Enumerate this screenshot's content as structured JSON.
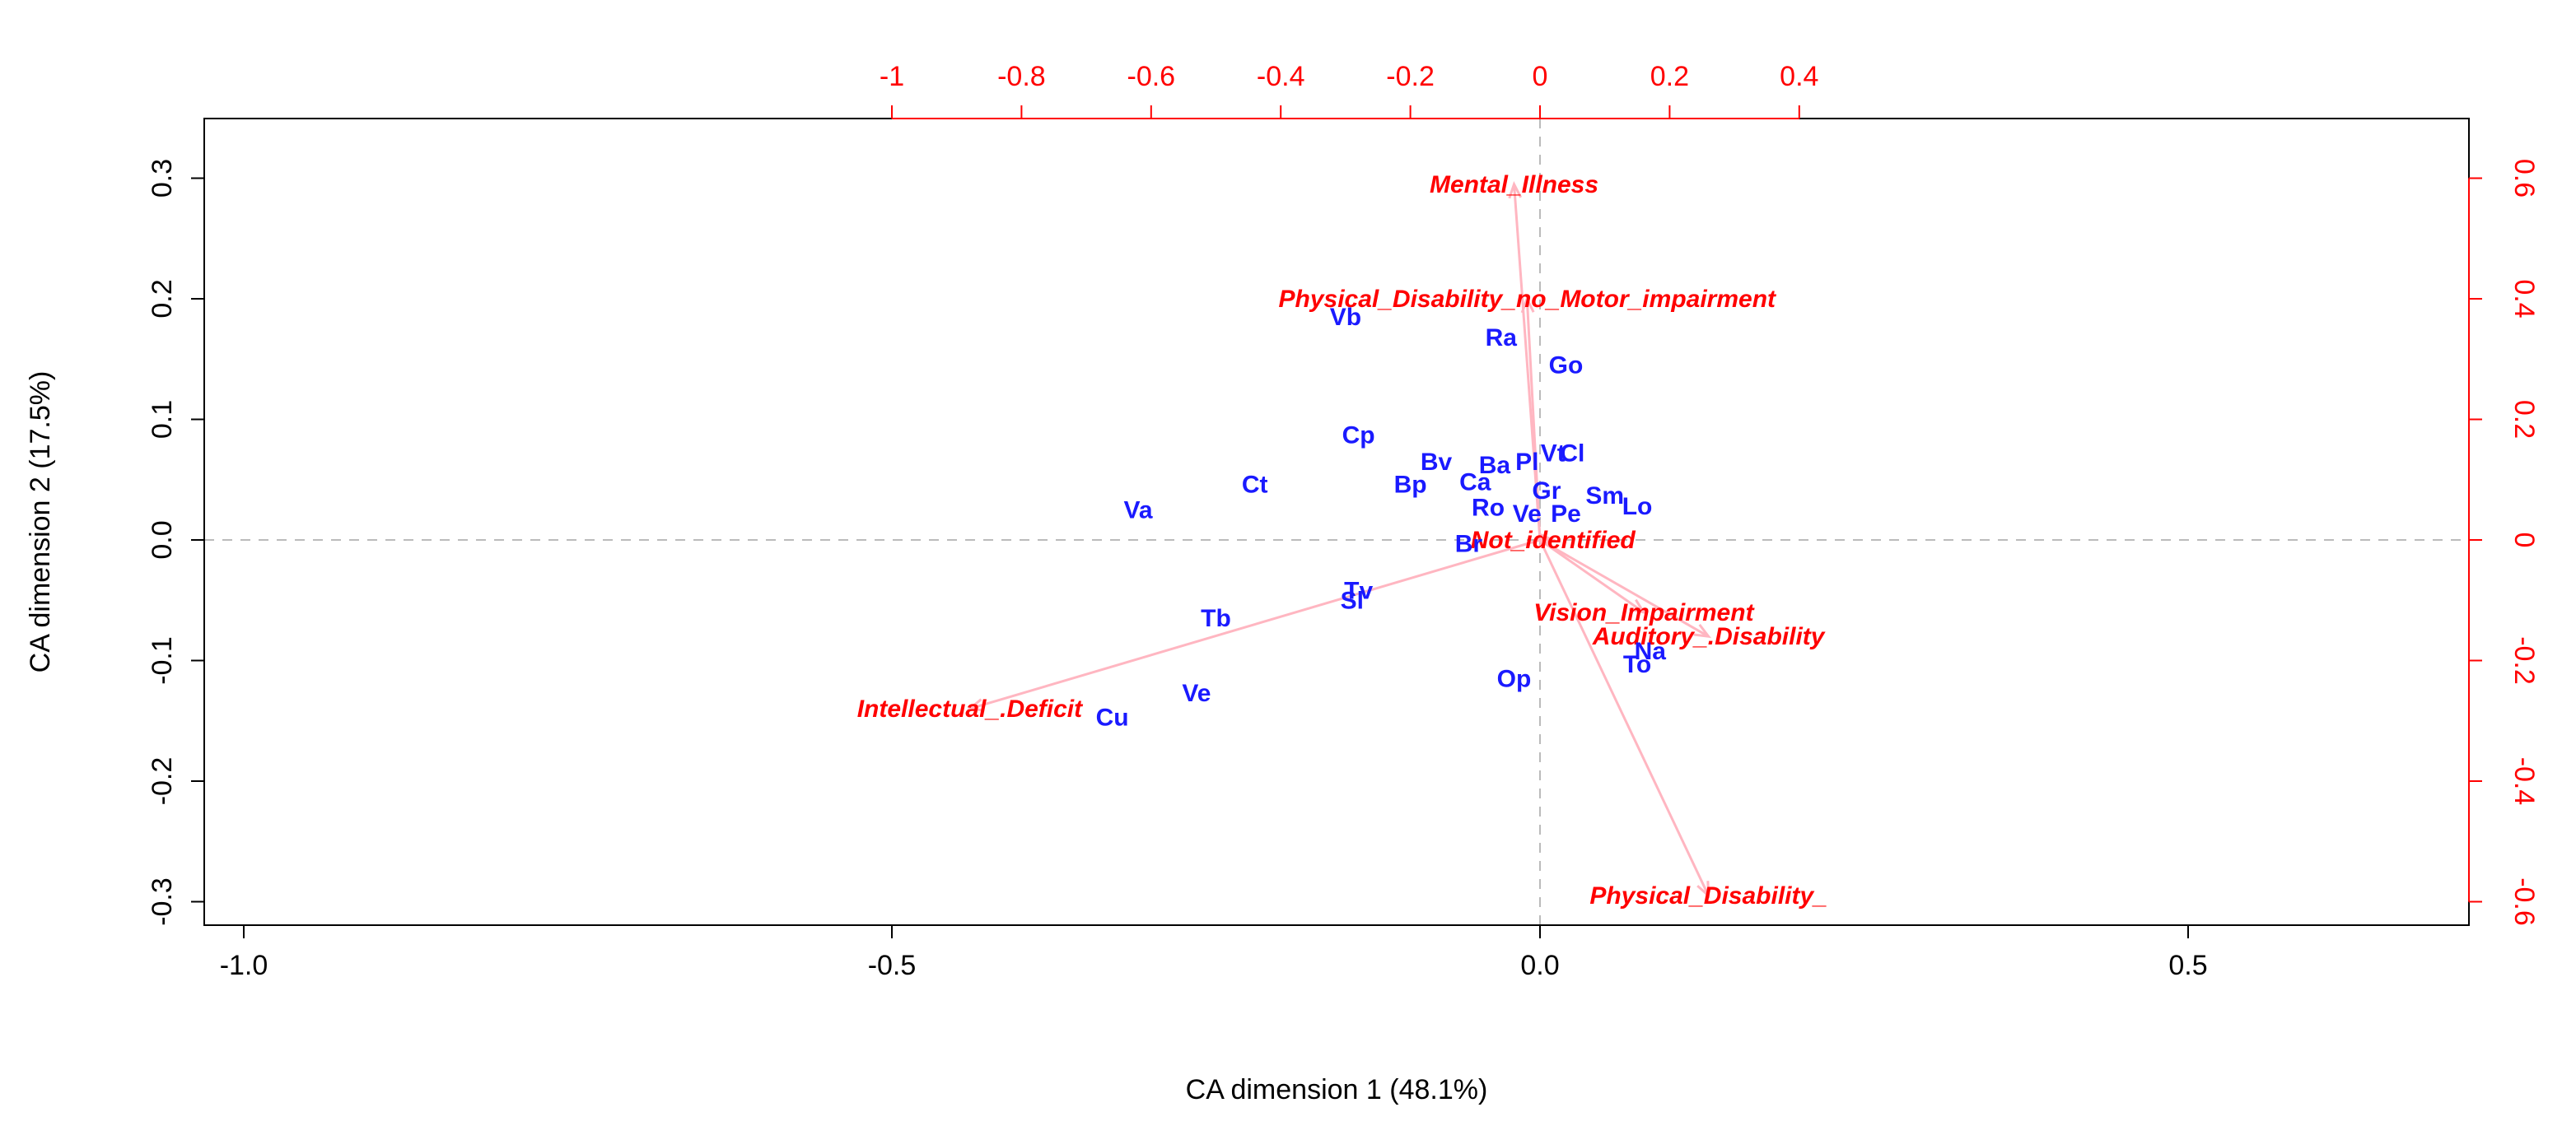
{
  "chart_data": {
    "type": "scatter",
    "subtype": "correspondence-analysis-biplot",
    "title": "",
    "xlabel": "CA dimension 1 (48.1%)",
    "ylabel": "CA dimension 2 (17.5%)",
    "xlim": [
      -1.0,
      0.7
    ],
    "ylim": [
      -0.32,
      0.35
    ],
    "x_ticks": [
      -1.0,
      -0.5,
      0.0,
      0.5
    ],
    "x_tick_labels": [
      "-1.0",
      "-0.5",
      "0.0",
      "0.5"
    ],
    "y_ticks": [
      -0.3,
      -0.2,
      -0.1,
      0.0,
      0.1,
      0.2,
      0.3
    ],
    "y_tick_labels": [
      "-0.3",
      "-0.2",
      "-0.1",
      "0.0",
      "0.1",
      "0.2",
      "0.3"
    ],
    "secondary_axis_color": "#ff0000",
    "top_ticks": [
      -1,
      -0.8,
      -0.6,
      -0.4,
      -0.2,
      0,
      0.2,
      0.4
    ],
    "top_tick_labels": [
      "-1",
      "-0.8",
      "-0.6",
      "-0.4",
      "-0.2",
      "0",
      "0.2",
      "0.4"
    ],
    "right_ticks": [
      -0.6,
      -0.4,
      -0.2,
      0,
      0.2,
      0.4,
      0.6
    ],
    "right_tick_labels": [
      "-0.6",
      "-0.4",
      "-0.2",
      "0",
      "0.2",
      "0.4",
      "0.6"
    ],
    "secondary_scale": 2.0,
    "row_color": "#1a1aff",
    "column_color": "#ff0000",
    "arrow_color": "#ffb6c1",
    "reference_line_color": "#bbbbbb",
    "row_points": [
      {
        "label": "Vb",
        "x": -0.15,
        "y": 0.185
      },
      {
        "label": "Ra",
        "x": -0.03,
        "y": 0.168
      },
      {
        "label": "Go",
        "x": 0.02,
        "y": 0.145
      },
      {
        "label": "Cp",
        "x": -0.14,
        "y": 0.087
      },
      {
        "label": "Bv",
        "x": -0.08,
        "y": 0.065
      },
      {
        "label": "Ba",
        "x": -0.035,
        "y": 0.062
      },
      {
        "label": "Pl",
        "x": -0.01,
        "y": 0.065
      },
      {
        "label": "Vt",
        "x": 0.01,
        "y": 0.072
      },
      {
        "label": "Cl",
        "x": 0.025,
        "y": 0.072
      },
      {
        "label": "Ct",
        "x": -0.22,
        "y": 0.046
      },
      {
        "label": "Bp",
        "x": -0.1,
        "y": 0.046
      },
      {
        "label": "Ca",
        "x": -0.05,
        "y": 0.048
      },
      {
        "label": "Gr",
        "x": 0.005,
        "y": 0.041
      },
      {
        "label": "Sm",
        "x": 0.05,
        "y": 0.037
      },
      {
        "label": "Lo",
        "x": 0.075,
        "y": 0.028
      },
      {
        "label": "Va",
        "x": -0.31,
        "y": 0.025
      },
      {
        "label": "Ro",
        "x": -0.04,
        "y": 0.027
      },
      {
        "label": "Ve",
        "x": -0.01,
        "y": 0.022
      },
      {
        "label": "Pe",
        "x": 0.02,
        "y": 0.022
      },
      {
        "label": "Br",
        "x": -0.055,
        "y": -0.003
      },
      {
        "label": "Tv",
        "x": -0.14,
        "y": -0.042
      },
      {
        "label": "Sl",
        "x": -0.145,
        "y": -0.05
      },
      {
        "label": "Tb",
        "x": -0.25,
        "y": -0.065
      },
      {
        "label": "Op",
        "x": -0.02,
        "y": -0.115
      },
      {
        "label": "To",
        "x": 0.075,
        "y": -0.103
      },
      {
        "label": "Na",
        "x": 0.085,
        "y": -0.092
      },
      {
        "label": "Ve",
        "x": -0.265,
        "y": -0.127
      },
      {
        "label": "Cu",
        "x": -0.33,
        "y": -0.147
      }
    ],
    "column_points": [
      {
        "label": "Mental_Illness",
        "x": -0.02,
        "y": 0.295
      },
      {
        "label": "Physical_Disability_no_Motor_impairment",
        "x": -0.01,
        "y": 0.2
      },
      {
        "label": "Not_identified",
        "x": 0.01,
        "y": 0.0
      },
      {
        "label": "Intellectual_.Deficit",
        "x": -0.44,
        "y": -0.14
      },
      {
        "label": "Vision_Impairment",
        "x": 0.08,
        "y": -0.06
      },
      {
        "label": "Auditory_.Disability",
        "x": 0.13,
        "y": -0.08
      },
      {
        "label": "Physical_Disability_",
        "x": 0.13,
        "y": -0.295
      }
    ]
  }
}
